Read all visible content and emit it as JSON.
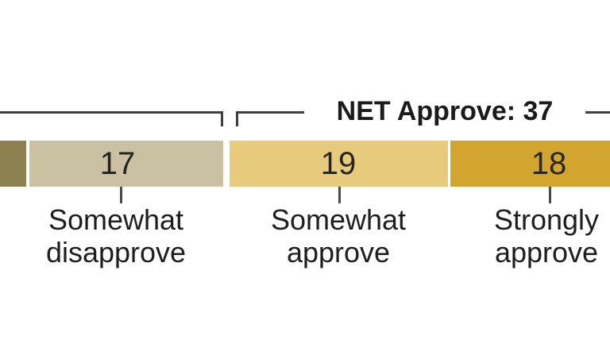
{
  "chart_data": {
    "type": "bar",
    "orientation": "horizontal_stacked",
    "title": "",
    "net_annotation": "NET Approve: 37",
    "net_approve_value": 37,
    "line_color": "#3f3f3f",
    "annotation_text_color": "#1b1b1b",
    "background_color": "#ffffff",
    "segments": [
      {
        "category": "",
        "value": null,
        "color": "#8d8151",
        "clipped": "left-edge"
      },
      {
        "category": "Somewhat disapprove",
        "label_line1": "Somewhat",
        "label_line2": "disapprove",
        "value": 17,
        "color": "#c9c1a1",
        "clipped": "none"
      },
      {
        "category": "Somewhat approve",
        "label_line1": "Somewhat",
        "label_line2": "approve",
        "value": 19,
        "color": "#e8ca7d",
        "clipped": "none"
      },
      {
        "category": "Strongly approve",
        "label_line1": "Strongly",
        "label_line2": "approve",
        "value": 18,
        "color": "#d2a62e",
        "clipped": "right-edge"
      }
    ],
    "legend_position": "none",
    "grid": false
  }
}
